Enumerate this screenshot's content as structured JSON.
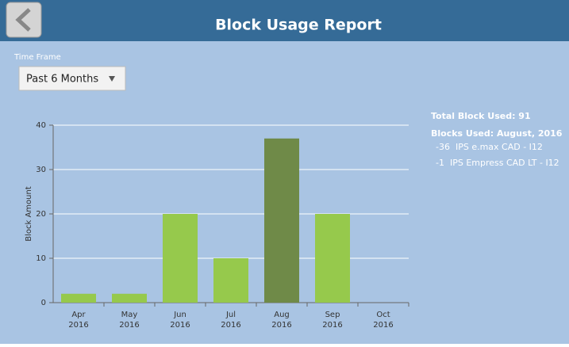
{
  "header": {
    "title": "Block Usage Report"
  },
  "time_frame": {
    "label": "Time Frame",
    "selected": "Past 6 Months"
  },
  "summary": {
    "total": "Total Block Used: 91",
    "detail_title": "Blocks Used: August, 2016",
    "items": [
      "-36  IPS e.max CAD - I12",
      "-1  IPS Empress CAD LT - I12"
    ]
  },
  "chart_data": {
    "type": "bar",
    "y_label": "Block Amount",
    "categories": [
      "Apr 2016",
      "May 2016",
      "Jun 2016",
      "Jul 2016",
      "Aug 2016",
      "Sep 2016",
      "Oct 2016"
    ],
    "values": [
      2,
      2,
      20,
      10,
      37,
      20,
      0
    ],
    "colors": [
      "#96c94c",
      "#96c94c",
      "#96c94c",
      "#96c94c",
      "#6f8a48",
      "#96c94c",
      "#96c94c"
    ],
    "ylim": [
      0,
      40
    ],
    "yticks": [
      0,
      10,
      20,
      30,
      40
    ],
    "grid": true
  }
}
